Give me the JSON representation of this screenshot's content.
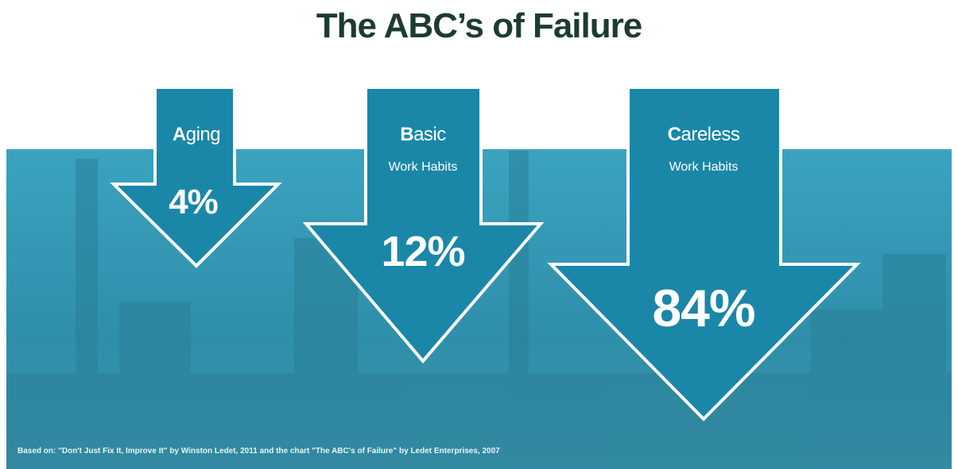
{
  "title": "The ABC’s of Failure",
  "items": [
    {
      "label": "Aging",
      "value": "4%"
    },
    {
      "label": "Basic",
      "sublabel": "Work Habits",
      "value": "12%"
    },
    {
      "label": "Careless",
      "sublabel": "Work Habits",
      "value": "84%"
    }
  ],
  "source": "Based on: \"Don't Just Fix It, Improve It\" by Winston Ledet, 2011 and the chart \"The ABC's of Failure\" by Ledet Enterprises, 2007"
}
